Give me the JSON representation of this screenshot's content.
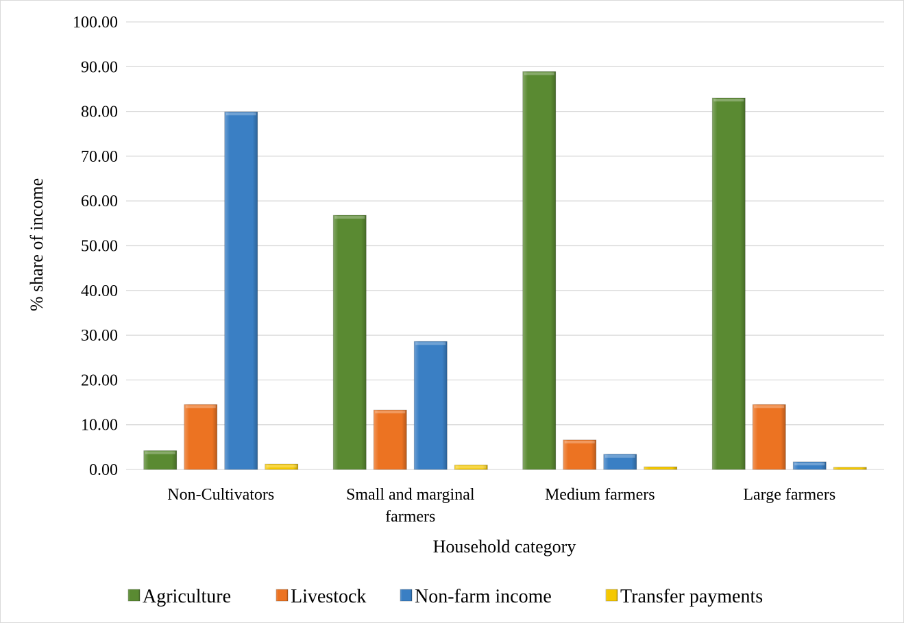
{
  "chart_data": {
    "type": "bar",
    "categories": [
      [
        "Non-Cultivators"
      ],
      [
        "Small and marginal",
        "farmers"
      ],
      [
        "Medium farmers"
      ],
      [
        "Large farmers"
      ]
    ],
    "series": [
      {
        "name": "Agriculture",
        "values": [
          4.2,
          56.8,
          88.9,
          83.0
        ],
        "color": "#5a8a32"
      },
      {
        "name": "Livestock",
        "values": [
          14.5,
          13.3,
          6.6,
          14.5
        ],
        "color": "#ec7322"
      },
      {
        "name": "Non-farm income",
        "values": [
          79.9,
          28.6,
          3.4,
          1.7
        ],
        "color": "#3a7fc4"
      },
      {
        "name": "Transfer payments",
        "values": [
          1.2,
          1.0,
          0.6,
          0.5
        ],
        "color": "#f5c800"
      }
    ],
    "xlabel": "Household category",
    "ylabel": "% share of income",
    "ylim": [
      0,
      100
    ],
    "yticks": [
      "0.00",
      "10.00",
      "20.00",
      "30.00",
      "40.00",
      "50.00",
      "60.00",
      "70.00",
      "80.00",
      "90.00",
      "100.00"
    ],
    "grid": true,
    "legend_position": "bottom"
  }
}
